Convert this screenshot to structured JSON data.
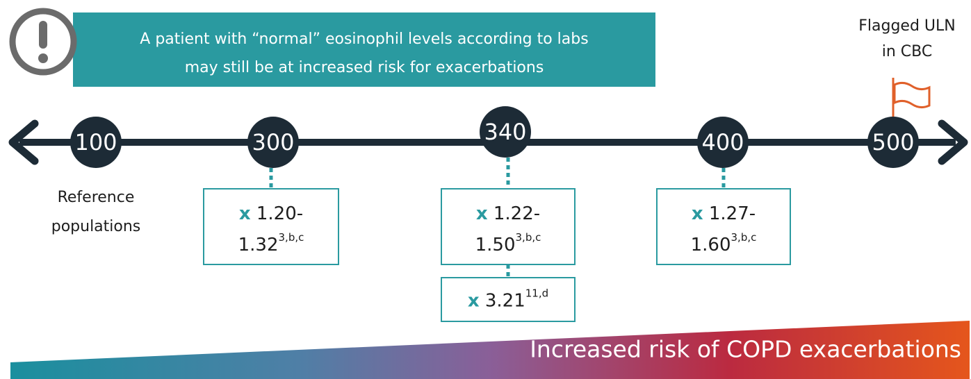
{
  "alert": {
    "lines": [
      "A patient with “normal” eosinophil levels according to labs",
      "may still be at increased risk for exacerbations"
    ]
  },
  "flag": {
    "lines": [
      "Flagged ULN",
      "in CBC"
    ]
  },
  "timeline": {
    "nodes": [
      {
        "value": 100,
        "note": [
          "Reference",
          "populations"
        ]
      },
      {
        "value": 300
      },
      {
        "value": 340
      },
      {
        "value": 400
      },
      {
        "value": 500
      }
    ]
  },
  "boxes": [
    {
      "prefix": "x",
      "lines": [
        "1.20-",
        "1.32"
      ],
      "sup": "3,b,c"
    },
    {
      "prefix": "x",
      "lines": [
        "1.22-",
        "1.50"
      ],
      "sup": "3,b,c"
    },
    {
      "prefix": "x",
      "lines": [
        "3.21"
      ],
      "sup": "11,d"
    },
    {
      "prefix": "x",
      "lines": [
        "1.27-",
        "1.60"
      ],
      "sup": "3,b,c"
    }
  ],
  "banner": "Increased risk of COPD exacerbations"
}
